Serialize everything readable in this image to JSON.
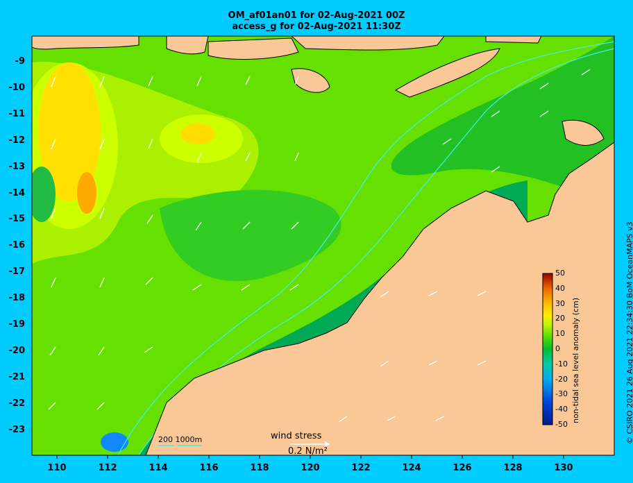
{
  "title_line1": "OM_af01an01 for 02-Aug-2021 00Z",
  "title_line2": "access_g for 02-Aug-2021 11:30Z",
  "y_axis_labels": [
    "-9",
    "-10",
    "-11",
    "-12",
    "-13",
    "-14",
    "-15",
    "-16",
    "-17",
    "-18",
    "-19",
    "-20",
    "-21",
    "-22",
    "-23"
  ],
  "x_axis_labels": [
    "110",
    "112",
    "114",
    "116",
    "118",
    "120",
    "122",
    "124",
    "126",
    "128",
    "130"
  ],
  "colorbar": {
    "title": "non-tidal sea level anomaly (cm)",
    "ticks": [
      "50",
      "40",
      "30",
      "20",
      "10",
      "0",
      "-10",
      "-20",
      "-30",
      "-40",
      "-50"
    ],
    "colors": [
      "#002288",
      "#0033cc",
      "#0077ff",
      "#00bbee",
      "#00ccaa",
      "#00aa33",
      "#33cc00",
      "#77ee00",
      "#ccff00",
      "#ffdd00",
      "#ff9900",
      "#ee5500",
      "#cc2200",
      "#990000"
    ]
  },
  "legend": {
    "wind_label": "wind stress",
    "wind_value": "0.2 N/m²",
    "isobath_label": "200  1000m"
  },
  "credit": "© CSIRO 2021   26 Aug 2021 22:34:30 BoM OceanMAPS v3",
  "colors": {
    "frame": "#00ccff",
    "land": "#f9c896",
    "ocean_high": "#ffd000",
    "ocean_mid": "#66dd00",
    "ocean_low": "#00aa44",
    "isobath": "#44eeee"
  }
}
